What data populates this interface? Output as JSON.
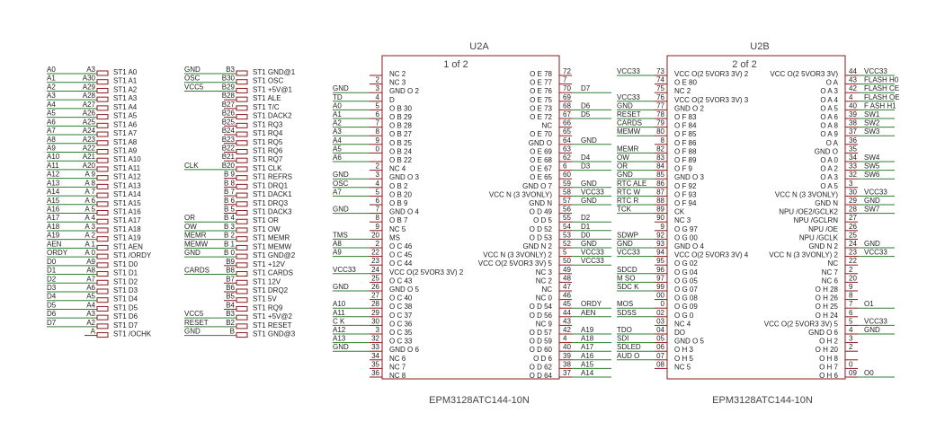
{
  "connector_a": {
    "rows": [
      [
        "A0",
        "A3",
        "ST1 A0"
      ],
      [
        "A1",
        "A30",
        "ST1 A1"
      ],
      [
        "A2",
        "A29",
        "ST1 A2"
      ],
      [
        "A3",
        "A28",
        "ST1 A3"
      ],
      [
        "A4",
        "A27",
        "ST1 A4"
      ],
      [
        "A5",
        "A26",
        "ST1 A5"
      ],
      [
        "A6",
        "A25",
        "ST1 A6"
      ],
      [
        "A7",
        "A24",
        "ST1 A7"
      ],
      [
        "A8",
        "A23",
        "ST1 A8"
      ],
      [
        "A9",
        "A22",
        "ST1 A9"
      ],
      [
        "A10",
        "A21",
        "ST1 A10"
      ],
      [
        "A11",
        "A20",
        "ST1 A11"
      ],
      [
        "A12",
        "A 9",
        "ST1 A12"
      ],
      [
        "A13",
        "A 8",
        "ST1 A13"
      ],
      [
        "A14",
        "A 7",
        "ST1 A14"
      ],
      [
        "A15",
        "A 6",
        "ST1 A15"
      ],
      [
        "A16",
        "A 5",
        "ST1 A16"
      ],
      [
        "A17",
        "A 4",
        "ST1 A17"
      ],
      [
        "A18",
        "A 3",
        "ST1 A18"
      ],
      [
        "A19",
        "A 2",
        "ST1 A19"
      ],
      [
        "AEN",
        "A 1",
        "ST1 AEN"
      ],
      [
        "ORDY",
        "A 0",
        "ST1 /ORDY"
      ],
      [
        "D0",
        "A9",
        "ST1 D0"
      ],
      [
        "D1",
        "A8",
        "ST1 D1"
      ],
      [
        "D2",
        "A7",
        "ST1 D2"
      ],
      [
        "D3",
        "A6",
        "ST1 D3"
      ],
      [
        "D4",
        "A5",
        "ST1 D4"
      ],
      [
        "D5",
        "A4",
        "ST1 D5"
      ],
      [
        "D6",
        "A3",
        "ST1 D6"
      ],
      [
        "D7",
        "A2",
        "ST1 D7"
      ],
      [
        null,
        "A",
        "ST1 /OCHK"
      ]
    ]
  },
  "connector_b": {
    "rows": [
      [
        "GND",
        "B3",
        "ST1 GND@1"
      ],
      [
        "OSC",
        "B30",
        "ST1 OSC"
      ],
      [
        "VCC5",
        "B29",
        "ST1 +5V@1"
      ],
      [
        null,
        "B28",
        "ST1 ALE"
      ],
      [
        null,
        "B27",
        "ST1 T/C"
      ],
      [
        null,
        "B26",
        "ST1 DACK2"
      ],
      [
        null,
        "B25",
        "ST1 RQ3"
      ],
      [
        null,
        "B24",
        "ST1 RQ4"
      ],
      [
        null,
        "B23",
        "ST1 RQ5"
      ],
      [
        null,
        "B22",
        "ST1 RQ6"
      ],
      [
        null,
        "B21",
        "ST1 RQ7"
      ],
      [
        "CLK",
        "B20",
        "ST1 CLK"
      ],
      [
        null,
        "B 9",
        "ST1 REFRS"
      ],
      [
        null,
        "B 8",
        "ST1 DRQ1"
      ],
      [
        null,
        "B 7",
        "ST1 DACK1"
      ],
      [
        null,
        "B 6",
        "ST1 DRQ3"
      ],
      [
        null,
        "B 5",
        "ST1 DACK3"
      ],
      [
        "OR",
        "B 4",
        "ST1 OR"
      ],
      [
        "OW",
        "B 3",
        "ST1 OW"
      ],
      [
        "MEMR",
        "B 2",
        "ST1 MEMR"
      ],
      [
        "MEMW",
        "B 1",
        "ST1 MEMW"
      ],
      [
        "GND",
        "B 0",
        "ST1 GND@2"
      ],
      [
        null,
        "B9",
        "ST1 +12V"
      ],
      [
        "CARDS",
        "B8",
        "ST1 CARDS"
      ],
      [
        null,
        "B7",
        "ST1 12V"
      ],
      [
        null,
        "B6",
        "ST1 DRQ2"
      ],
      [
        null,
        "B5",
        "ST1 5V"
      ],
      [
        null,
        "B4",
        "ST1 RQ9"
      ],
      [
        "VCC5",
        "B3",
        "ST1 +5V@2"
      ],
      [
        "RESET",
        "B2",
        "ST1 RESET"
      ],
      [
        "GND",
        "B",
        "ST1 GND@3"
      ]
    ]
  },
  "u2a": {
    "title": "U2A",
    "part": "1 of 2",
    "footer": "EPM3128ATC144-10N",
    "left": [
      [
        null,
        null,
        "NC 2"
      ],
      [
        null,
        "2",
        "NC 3"
      ],
      [
        "GND",
        "3",
        "GND O 2"
      ],
      [
        "TD",
        "4",
        "D"
      ],
      [
        "A0",
        "5",
        "O B 30"
      ],
      [
        "A1",
        "6",
        "O B 29"
      ],
      [
        "A2",
        "7",
        "O B 28"
      ],
      [
        "A3",
        "8",
        "O B 27"
      ],
      [
        "A4",
        "9",
        "O B 25"
      ],
      [
        "A5",
        "0",
        "O B 24"
      ],
      [
        "A6",
        null,
        "O B 22"
      ],
      [
        null,
        "2",
        "NC 4"
      ],
      [
        "GND",
        "3",
        "GND O 3"
      ],
      [
        "OSC",
        "4",
        "O B 2"
      ],
      [
        "A7",
        "5",
        "O B 20"
      ],
      [
        null,
        "6",
        "O B 9"
      ],
      [
        "GND",
        "7",
        "GND O 4"
      ],
      [
        null,
        "8",
        "O B 7"
      ],
      [
        null,
        "9",
        "NC 5"
      ],
      [
        "TMS",
        "20",
        "MS"
      ],
      [
        "A8",
        "2",
        "O C 46"
      ],
      [
        "A9",
        "22",
        "O C 45"
      ],
      [
        null,
        "23",
        "O C 44"
      ],
      [
        "VCC33",
        "24",
        "VCC O(2 5VOR3 3V) 2"
      ],
      [
        null,
        "25",
        "O C 43"
      ],
      [
        "GND",
        "26",
        "GND O 5"
      ],
      [
        null,
        "27",
        "O C 40"
      ],
      [
        "A10",
        "28",
        "O C 38"
      ],
      [
        "A11",
        "29",
        "O C 37"
      ],
      [
        "C K",
        "30",
        "O C 36"
      ],
      [
        "A12",
        "3",
        "O C 35"
      ],
      [
        "A13",
        "32",
        "O C 33"
      ],
      [
        "GND",
        "33",
        "GND O 6"
      ],
      [
        null,
        "34",
        "NC 6"
      ],
      [
        null,
        "35",
        "NC 7"
      ],
      [
        null,
        "36",
        "NC 8"
      ]
    ],
    "right": [
      [
        "O E 78",
        "72",
        null
      ],
      [
        "O E 77",
        "7",
        null
      ],
      [
        "O E 76",
        "70",
        "D7"
      ],
      [
        "O E 75",
        "69",
        null
      ],
      [
        "O E 73",
        "68",
        "D6"
      ],
      [
        "O E 72",
        "67",
        "D5"
      ],
      [
        "NC",
        "66",
        null
      ],
      [
        "O E 70",
        "65",
        null
      ],
      [
        "GND O",
        "64",
        "GND"
      ],
      [
        "O E 69",
        "63",
        null
      ],
      [
        "O E 68",
        "62",
        "D4"
      ],
      [
        "O E 67",
        "6",
        "D3"
      ],
      [
        "O E 65",
        "60",
        null
      ],
      [
        "GND O 7",
        "59",
        "GND"
      ],
      [
        "VCC N (3 3VONLY)",
        "58",
        "VCC33"
      ],
      [
        "GND N",
        "57",
        "GND"
      ],
      [
        "O D 49",
        "56",
        null
      ],
      [
        "O D 5",
        "55",
        "D2"
      ],
      [
        "O D 52",
        "54",
        "D1"
      ],
      [
        "O D 53",
        "53",
        "D0"
      ],
      [
        "GND N 2",
        "52",
        "GND"
      ],
      [
        "VCC N (3 3VONLY) 2",
        "5",
        "VCC33"
      ],
      [
        "VCC O(2 5VOR3 3V) 5",
        "50",
        "VCC33"
      ],
      [
        "NC 3",
        "49",
        null
      ],
      [
        "NC 2",
        "48",
        null
      ],
      [
        "NC",
        "47",
        null
      ],
      [
        "NC 0",
        "46",
        null
      ],
      [
        "O D 54",
        "45",
        "ORDY"
      ],
      [
        "O D 56",
        "44",
        "AEN"
      ],
      [
        "NC 9",
        "43",
        null
      ],
      [
        "O D 57",
        "42",
        "A19"
      ],
      [
        "O D 59",
        "4",
        "A18"
      ],
      [
        "O D 60",
        "40",
        "A17"
      ],
      [
        "O D 6",
        "39",
        "A16"
      ],
      [
        "O D 62",
        "38",
        "A15"
      ],
      [
        "O D 64",
        "37",
        "A14"
      ]
    ]
  },
  "u2b": {
    "title": "U2B",
    "part": "2 of 2",
    "footer": "EPM3128ATC144-10N",
    "left": [
      [
        "VCC33",
        "73",
        "VCC O(2 5VOR3 3V) 2"
      ],
      [
        null,
        "74",
        "O E 80"
      ],
      [
        null,
        "75",
        "NC 2"
      ],
      [
        "VCC33",
        "76",
        "VCC O(2 5VOR3 3V) 3"
      ],
      [
        "GND",
        "77",
        "GND O 2"
      ],
      [
        "RESET",
        "78",
        "O F 83"
      ],
      [
        "CARDS",
        "79",
        "O F 84"
      ],
      [
        "MEMW",
        "80",
        "O F 85"
      ],
      [
        null,
        "8",
        "O F 86"
      ],
      [
        "MEMR",
        "82",
        "O F 88"
      ],
      [
        "OW",
        "83",
        "O F 89"
      ],
      [
        "OR",
        "84",
        "O F 9"
      ],
      [
        "GND",
        "85",
        "GND O 3"
      ],
      [
        "RTC ALE",
        "86",
        "O F 92"
      ],
      [
        "RTC W",
        "87",
        "O F 93"
      ],
      [
        "RTC R",
        "88",
        "O F 94"
      ],
      [
        "TCK",
        "89",
        "CK"
      ],
      [
        null,
        "90",
        "NC 3"
      ],
      [
        null,
        "9",
        "O G 97"
      ],
      [
        "SDWP",
        "92",
        "O G 00"
      ],
      [
        "GND",
        "93",
        "GND O 4"
      ],
      [
        "VCC33",
        "94",
        "VCC O(2 5VOR3 3V) 4"
      ],
      [
        null,
        "95",
        "O G 02"
      ],
      [
        "SDCD",
        "96",
        "O G 04"
      ],
      [
        "M SO",
        "97",
        "O G 05"
      ],
      [
        "SDC K",
        "99",
        "O G 07"
      ],
      [
        null,
        "00",
        "O G 08"
      ],
      [
        "MOS",
        "0",
        "O G 09"
      ],
      [
        "SDSS",
        "02",
        "O G 0"
      ],
      [
        null,
        "03",
        "NC 4"
      ],
      [
        "TDO",
        "04",
        "DO"
      ],
      [
        "SDI",
        "05",
        "GND O 5"
      ],
      [
        "SDLED",
        "06",
        "O H 3"
      ],
      [
        "AUD O",
        "07",
        "O H 5"
      ],
      [
        null,
        "08",
        "NC 5"
      ]
    ],
    "right": [
      [
        "VCC O(2 5VOR3 3V)",
        "44",
        "VCC33"
      ],
      [
        "O A",
        "43",
        "FLASH H0"
      ],
      [
        "O A 3",
        "42",
        "FLASH CE"
      ],
      [
        "O A 4",
        "4",
        "FLASH OE"
      ],
      [
        "O A 5",
        "40",
        "F ASH H1"
      ],
      [
        "O A 6",
        "39",
        "SW1"
      ],
      [
        "O A 8",
        "38",
        "SW2"
      ],
      [
        "O A 9",
        "37",
        "SW3"
      ],
      [
        "O A",
        "36",
        null
      ],
      [
        "GND O",
        "35",
        null
      ],
      [
        "O A 0",
        "34",
        "SW4"
      ],
      [
        "O A 2",
        "33",
        "SW5"
      ],
      [
        "O A 3",
        "32",
        "SW6"
      ],
      [
        "O A 5",
        "3",
        null
      ],
      [
        "VCC N (3 3VONLY)",
        "30",
        "VCC33"
      ],
      [
        "GND N",
        "29",
        "GND"
      ],
      [
        "NPU /OE2/GCLK2",
        "28",
        "SW7"
      ],
      [
        "NPU /GCLRN",
        "27",
        null
      ],
      [
        "NPU /OE",
        "26",
        null
      ],
      [
        "NPU /GCLK",
        "25",
        null
      ],
      [
        "GND N 2",
        "24",
        "GND"
      ],
      [
        "VCC N (3 3VONLY) 2",
        "23",
        "VCC33"
      ],
      [
        "NC",
        "22",
        null
      ],
      [
        "NC 7",
        "2",
        null
      ],
      [
        "NC 6",
        "20",
        null
      ],
      [
        "O H 28",
        "9",
        null
      ],
      [
        "O H 26",
        "8",
        null
      ],
      [
        "O H 25",
        "7",
        "O1"
      ],
      [
        "O H 24",
        "6",
        null
      ],
      [
        "VCC O(2 5VOR3 3V) 5",
        "5",
        "VCC33"
      ],
      [
        "GND O 6",
        "4",
        "GND"
      ],
      [
        "O H 2",
        "3",
        null
      ],
      [
        "O H 20",
        "2",
        null
      ],
      [
        "O H 8",
        null,
        null
      ],
      [
        "O H 7",
        "0",
        null
      ],
      [
        "O H 6",
        "09",
        "O0"
      ]
    ]
  }
}
